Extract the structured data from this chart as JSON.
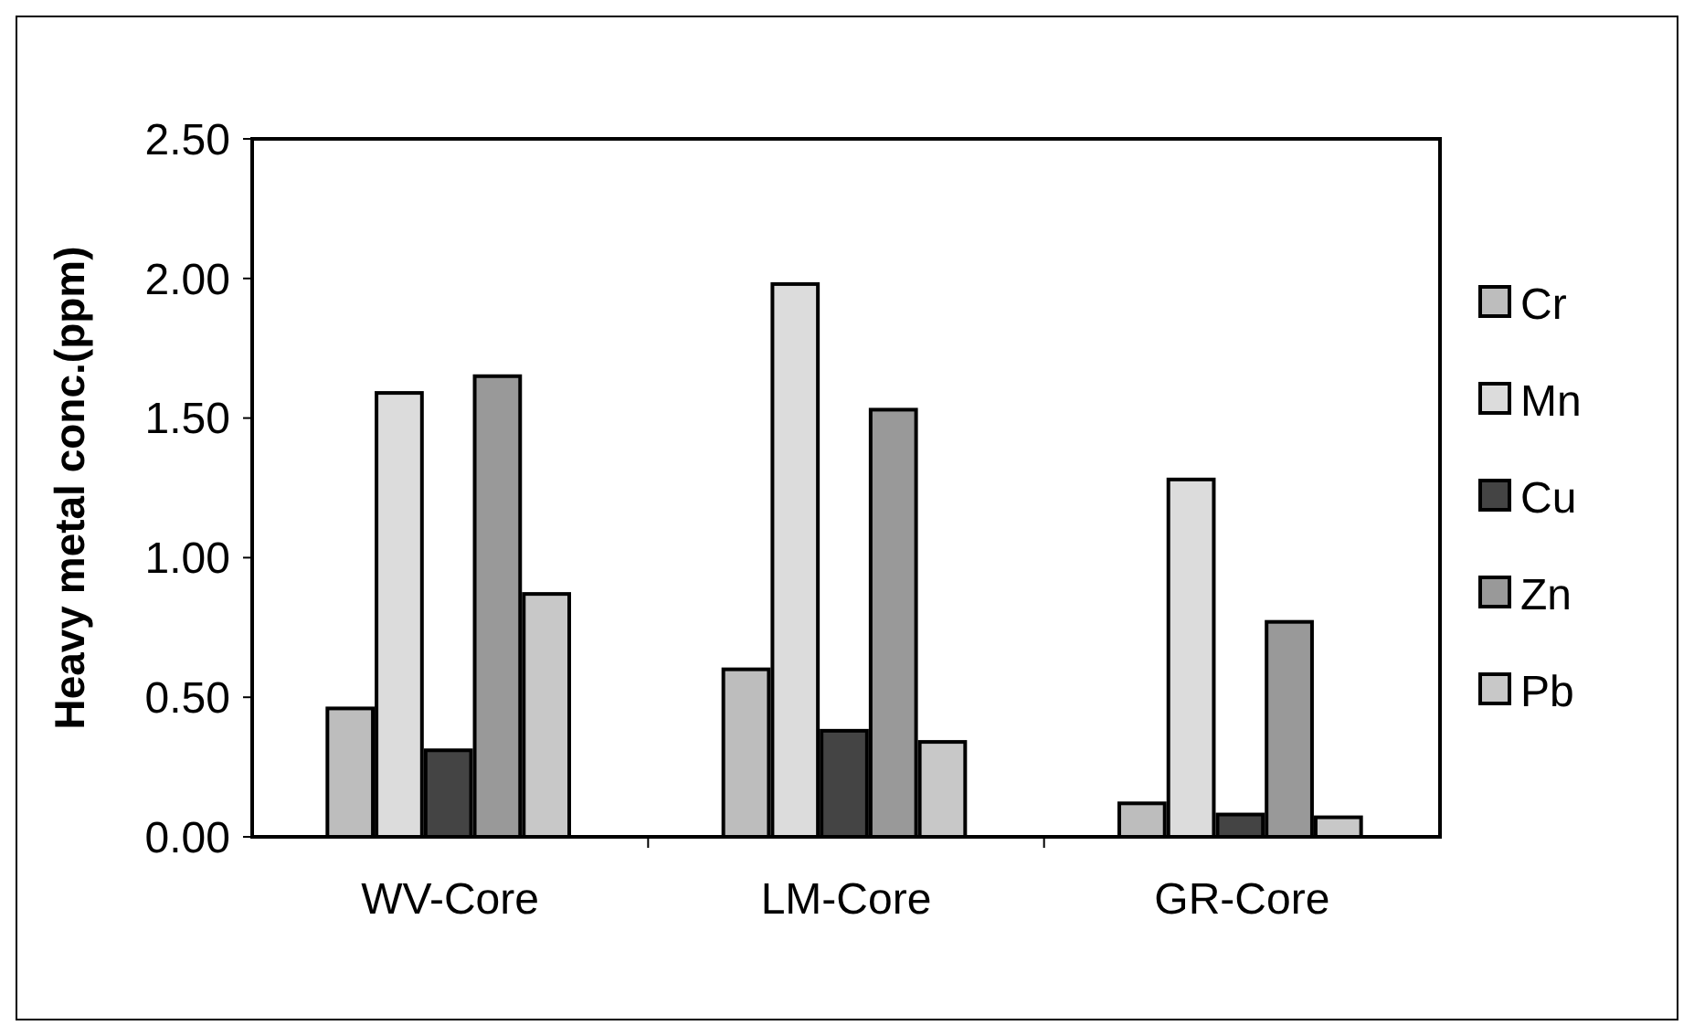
{
  "chart_data": {
    "type": "bar",
    "ylabel": "Heavy metal conc.(ppm)",
    "categories": [
      "WV-Core",
      "LM-Core",
      "GR-Core"
    ],
    "series": [
      {
        "name": "Cr",
        "color": "#bdbdbd",
        "values": [
          0.46,
          0.6,
          0.12
        ]
      },
      {
        "name": "Mn",
        "color": "#dcdcdc",
        "values": [
          1.59,
          1.98,
          1.28
        ]
      },
      {
        "name": "Cu",
        "color": "#444444",
        "values": [
          0.31,
          0.38,
          0.08
        ]
      },
      {
        "name": "Zn",
        "color": "#999999",
        "values": [
          1.65,
          1.53,
          0.77
        ]
      },
      {
        "name": "Pb",
        "color": "#c8c8c8",
        "values": [
          0.87,
          0.34,
          0.07
        ]
      }
    ],
    "ylim": [
      0,
      2.5
    ],
    "yticks": [
      {
        "value": 0,
        "label": "0.00"
      },
      {
        "value": 0.5,
        "label": "0.50"
      },
      {
        "value": 1,
        "label": "1.00"
      },
      {
        "value": 1.5,
        "label": "1.50"
      },
      {
        "value": 2,
        "label": "2.00"
      },
      {
        "value": 2.5,
        "label": "2.50"
      }
    ],
    "legend": "right"
  }
}
